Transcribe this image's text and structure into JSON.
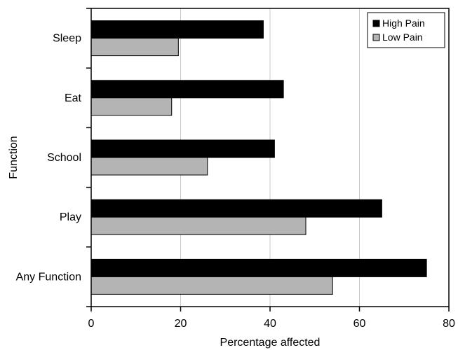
{
  "chart_data": {
    "type": "bar",
    "orientation": "horizontal",
    "title": "",
    "xlabel": "Percentage affected",
    "ylabel": "Function",
    "categories": [
      "Sleep",
      "Eat",
      "School",
      "Play",
      "Any Function"
    ],
    "series": [
      {
        "name": "High Pain",
        "color": "#000000",
        "values": [
          38.5,
          43,
          41,
          65,
          75
        ]
      },
      {
        "name": "Low Pain",
        "color": "#b4b4b4",
        "values": [
          19.5,
          18,
          26,
          48,
          54
        ]
      }
    ],
    "xlim": [
      0,
      80
    ],
    "xticks": [
      0,
      20,
      40,
      60,
      80
    ],
    "grid": "vertical",
    "legend_position": "top-right"
  }
}
